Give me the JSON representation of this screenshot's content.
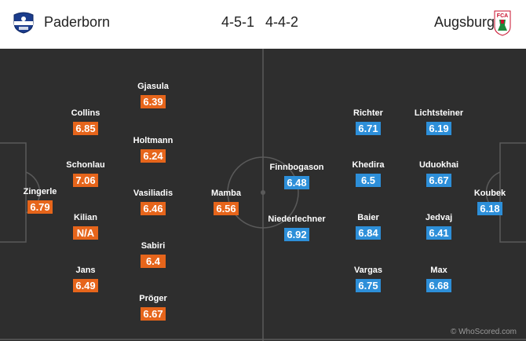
{
  "colors": {
    "home_rating": "#e6651b",
    "away_rating": "#2d8fd9",
    "pitch": "#2e2e2e",
    "lines": "#5a5a5a"
  },
  "home": {
    "name": "Paderborn",
    "formation": "4-5-1",
    "crest_icon": "paderborn-crest-icon",
    "players": [
      {
        "name": "Zingerle",
        "rating": "6.79"
      },
      {
        "name": "Collins",
        "rating": "6.85"
      },
      {
        "name": "Schonlau",
        "rating": "7.06"
      },
      {
        "name": "Kilian",
        "rating": "N/A"
      },
      {
        "name": "Jans",
        "rating": "6.49"
      },
      {
        "name": "Gjasula",
        "rating": "6.39"
      },
      {
        "name": "Holtmann",
        "rating": "6.24"
      },
      {
        "name": "Vasiliadis",
        "rating": "6.46"
      },
      {
        "name": "Sabiri",
        "rating": "6.4"
      },
      {
        "name": "Pröger",
        "rating": "6.67"
      },
      {
        "name": "Mamba",
        "rating": "6.56"
      }
    ]
  },
  "away": {
    "name": "Augsburg",
    "formation": "4-4-2",
    "crest_icon": "augsburg-crest-icon",
    "crest_text": "FCA",
    "players": [
      {
        "name": "Koubek",
        "rating": "6.18"
      },
      {
        "name": "Lichtsteiner",
        "rating": "6.19"
      },
      {
        "name": "Uduokhai",
        "rating": "6.67"
      },
      {
        "name": "Jedvaj",
        "rating": "6.41"
      },
      {
        "name": "Max",
        "rating": "6.68"
      },
      {
        "name": "Richter",
        "rating": "6.71"
      },
      {
        "name": "Khedira",
        "rating": "6.5"
      },
      {
        "name": "Baier",
        "rating": "6.84"
      },
      {
        "name": "Vargas",
        "rating": "6.75"
      },
      {
        "name": "Finnbogason",
        "rating": "6.48"
      },
      {
        "name": "Niederlechner",
        "rating": "6.92"
      }
    ]
  },
  "watermark": "© WhoScored.com"
}
